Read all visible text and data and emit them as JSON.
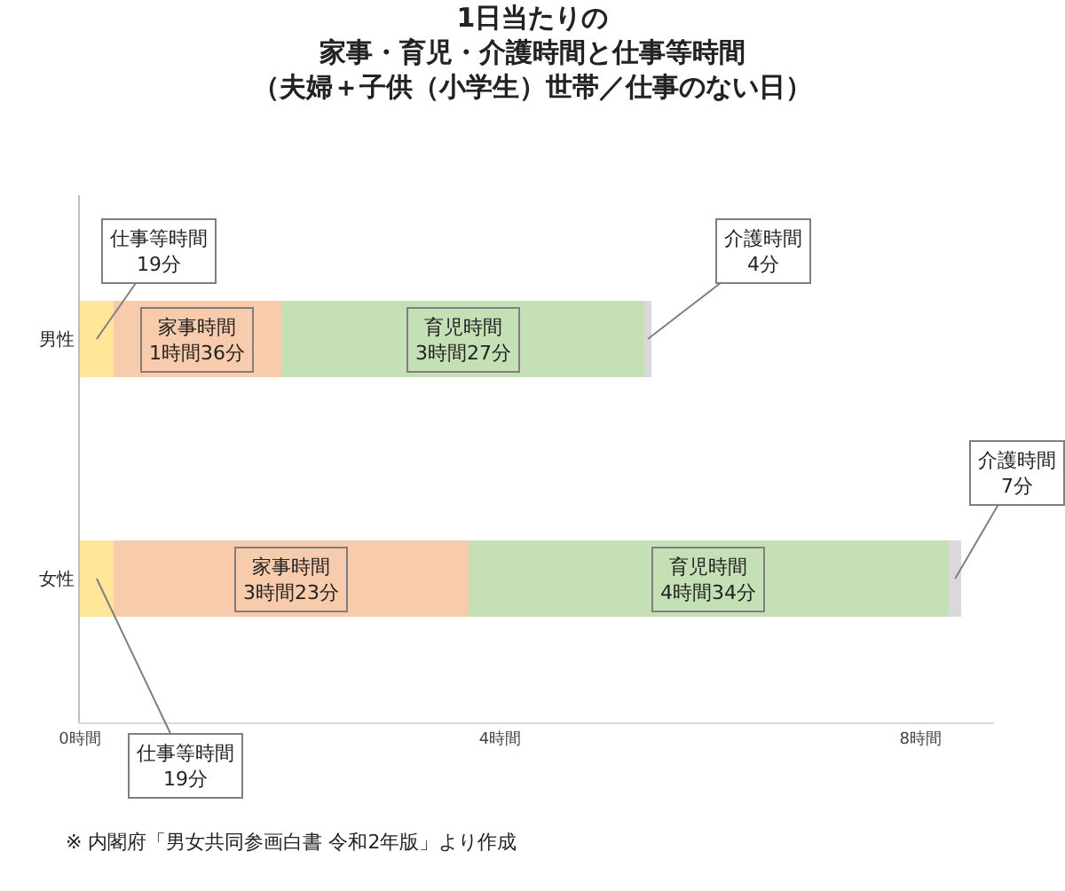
{
  "chart_data": {
    "type": "bar",
    "orientation": "horizontal",
    "stacked": true,
    "title": "1日当たりの家事・育児・介護時間と仕事等時間",
    "subtitle": "（夫婦＋子供（小学生）世帯／仕事のない日）",
    "categories": [
      "男性",
      "女性"
    ],
    "series": [
      {
        "color": "#ffe699",
        "values": [
          0.32,
          0.32
        ],
        "value_labels": [
          "仕事等時間\n19分",
          "仕事等時間\n19分"
        ]
      },
      {
        "color": "#f8cbad",
        "values": [
          1.6,
          3.38
        ],
        "value_labels": [
          "家事時間\n1時間36分",
          "家事時間\n3時間23分"
        ]
      },
      {
        "color": "#c5e0b4",
        "values": [
          3.45,
          4.57
        ],
        "value_labels": [
          "育児時間\n3時間27分",
          "育児時間\n4時間34分"
        ]
      },
      {
        "color": "#d9d9d9",
        "values": [
          0.07,
          0.12
        ],
        "value_labels": [
          "介護時間\n4分",
          "介護時間\n7分"
        ]
      }
    ],
    "xlim": [
      0,
      8.7
    ],
    "xticks": [
      {
        "value": 0,
        "label": "0時間"
      },
      {
        "value": 4,
        "label": "4時間"
      },
      {
        "value": 8,
        "label": "8時間"
      }
    ],
    "annotations": [
      "※ 内閣府「男女共同参画白書 令和2年版」より作成"
    ]
  }
}
